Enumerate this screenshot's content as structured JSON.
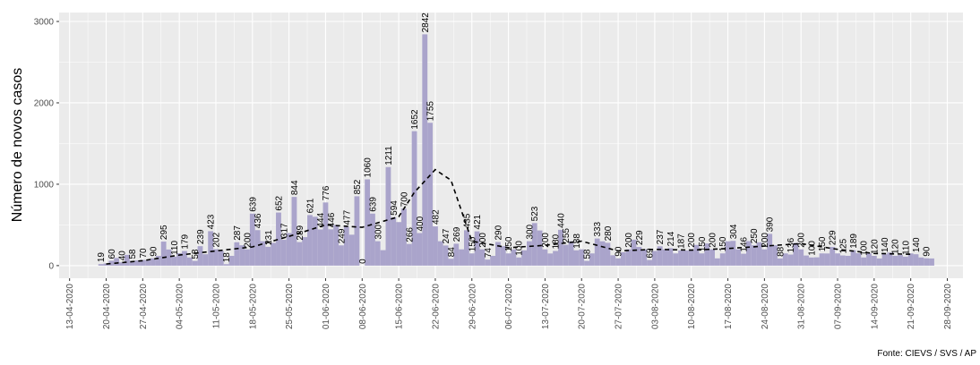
{
  "chart_data": {
    "type": "bar",
    "y_label": "Número de novos casos",
    "caption": "Fonte: CIEVS / SVS / AP",
    "grid": true,
    "xlim": [
      "2020-04-11",
      "2020-10-01"
    ],
    "ylim": [
      -155,
      3110
    ],
    "yticks": [
      0,
      1000,
      2000,
      3000
    ],
    "xticks": [
      {
        "value": "2020-04-13",
        "label": "13-04-2020"
      },
      {
        "value": "2020-04-20",
        "label": "20-04-2020"
      },
      {
        "value": "2020-04-27",
        "label": "27-04-2020"
      },
      {
        "value": "2020-05-04",
        "label": "04-05-2020"
      },
      {
        "value": "2020-05-11",
        "label": "11-05-2020"
      },
      {
        "value": "2020-05-18",
        "label": "18-05-2020"
      },
      {
        "value": "2020-05-25",
        "label": "25-05-2020"
      },
      {
        "value": "2020-06-01",
        "label": "01-06-2020"
      },
      {
        "value": "2020-06-08",
        "label": "08-06-2020"
      },
      {
        "value": "2020-06-15",
        "label": "15-06-2020"
      },
      {
        "value": "2020-06-22",
        "label": "22-06-2020"
      },
      {
        "value": "2020-06-29",
        "label": "29-06-2020"
      },
      {
        "value": "2020-07-06",
        "label": "06-07-2020"
      },
      {
        "value": "2020-07-13",
        "label": "13-07-2020"
      },
      {
        "value": "2020-07-20",
        "label": "20-07-2020"
      },
      {
        "value": "2020-07-27",
        "label": "27-07-2020"
      },
      {
        "value": "2020-08-03",
        "label": "03-08-2020"
      },
      {
        "value": "2020-08-10",
        "label": "10-08-2020"
      },
      {
        "value": "2020-08-17",
        "label": "17-08-2020"
      },
      {
        "value": "2020-08-24",
        "label": "24-08-2020"
      },
      {
        "value": "2020-08-31",
        "label": "31-08-2020"
      },
      {
        "value": "2020-09-07",
        "label": "07-09-2020"
      },
      {
        "value": "2020-09-14",
        "label": "14-09-2020"
      },
      {
        "value": "2020-09-21",
        "label": "21-09-2020"
      },
      {
        "value": "2020-09-28",
        "label": "28-09-2020"
      }
    ],
    "series": [
      {
        "type": "bar",
        "color": "#aaa4cb",
        "x": [
          "2020-04-19",
          "2020-04-20",
          "2020-04-21",
          "2020-04-22",
          "2020-04-23",
          "2020-04-24",
          "2020-04-25",
          "2020-04-26",
          "2020-04-27",
          "2020-04-28",
          "2020-04-29",
          "2020-04-30",
          "2020-05-01",
          "2020-05-02",
          "2020-05-03",
          "2020-05-04",
          "2020-05-05",
          "2020-05-06",
          "2020-05-07",
          "2020-05-08",
          "2020-05-09",
          "2020-05-10",
          "2020-05-11",
          "2020-05-12",
          "2020-05-13",
          "2020-05-14",
          "2020-05-15",
          "2020-05-16",
          "2020-05-17",
          "2020-05-18",
          "2020-05-19",
          "2020-05-20",
          "2020-05-21",
          "2020-05-22",
          "2020-05-23",
          "2020-05-24",
          "2020-05-25",
          "2020-05-26",
          "2020-05-27",
          "2020-05-28",
          "2020-05-29",
          "2020-05-30",
          "2020-05-31",
          "2020-06-01",
          "2020-06-02",
          "2020-06-03",
          "2020-06-04",
          "2020-06-05",
          "2020-06-06",
          "2020-06-07",
          "2020-06-08",
          "2020-06-09",
          "2020-06-10",
          "2020-06-11",
          "2020-06-12",
          "2020-06-13",
          "2020-06-14",
          "2020-06-15",
          "2020-06-16",
          "2020-06-17",
          "2020-06-18",
          "2020-06-19",
          "2020-06-20",
          "2020-06-21",
          "2020-06-22",
          "2020-06-23",
          "2020-06-24",
          "2020-06-25",
          "2020-06-26",
          "2020-06-27",
          "2020-06-28",
          "2020-06-29",
          "2020-06-30",
          "2020-07-01",
          "2020-07-02",
          "2020-07-03",
          "2020-07-04",
          "2020-07-05",
          "2020-07-06",
          "2020-07-07",
          "2020-07-08",
          "2020-07-09",
          "2020-07-10",
          "2020-07-11",
          "2020-07-12",
          "2020-07-13",
          "2020-07-14",
          "2020-07-15",
          "2020-07-16",
          "2020-07-17",
          "2020-07-18",
          "2020-07-19",
          "2020-07-20",
          "2020-07-21",
          "2020-07-22",
          "2020-07-23",
          "2020-07-24",
          "2020-07-25",
          "2020-07-26",
          "2020-07-27",
          "2020-07-28",
          "2020-07-29",
          "2020-07-30",
          "2020-07-31",
          "2020-08-01",
          "2020-08-02",
          "2020-08-03",
          "2020-08-04",
          "2020-08-05",
          "2020-08-06",
          "2020-08-07",
          "2020-08-08",
          "2020-08-09",
          "2020-08-10",
          "2020-08-11",
          "2020-08-12",
          "2020-08-13",
          "2020-08-14",
          "2020-08-15",
          "2020-08-16",
          "2020-08-17",
          "2020-08-18",
          "2020-08-19",
          "2020-08-20",
          "2020-08-21",
          "2020-08-22",
          "2020-08-23",
          "2020-08-24",
          "2020-08-25",
          "2020-08-26",
          "2020-08-27",
          "2020-08-28",
          "2020-08-29",
          "2020-08-30",
          "2020-08-31",
          "2020-09-01",
          "2020-09-02",
          "2020-09-03",
          "2020-09-04",
          "2020-09-05",
          "2020-09-06",
          "2020-09-07",
          "2020-09-08",
          "2020-09-09",
          "2020-09-10",
          "2020-09-11",
          "2020-09-12",
          "2020-09-13",
          "2020-09-14",
          "2020-09-15",
          "2020-09-16",
          "2020-09-17",
          "2020-09-18",
          "2020-09-19",
          "2020-09-20",
          "2020-09-21",
          "2020-09-22",
          "2020-09-23",
          "2020-09-24",
          "2020-09-25"
        ],
        "values": [
          19,
          26,
          60,
          93,
          40,
          132,
          58,
          64,
          70,
          66,
          90,
          120,
          295,
          198,
          110,
          153,
          179,
          100,
          58,
          239,
          140,
          423,
          202,
          180,
          18,
          120,
          287,
          250,
          200,
          639,
          436,
          300,
          231,
          280,
          652,
          317,
          400,
          844,
          289,
          350,
          621,
          600,
          444,
          776,
          446,
          500,
          249,
          477,
          380,
          852,
          0,
          1060,
          639,
          300,
          190,
          1211,
          594,
          535,
          700,
          266,
          1652,
          400,
          2842,
          1755,
          482,
          300,
          247,
          84,
          269,
          200,
          435,
          150,
          421,
          200,
          74,
          120,
          290,
          239,
          150,
          199,
          100,
          188,
          300,
          523,
          432,
          200,
          149,
          180,
          440,
          255,
          300,
          188,
          200,
          58,
          150,
          333,
          299,
          280,
          127,
          90,
          165,
          200,
          319,
          229,
          200,
          69,
          180,
          237,
          200,
          214,
          150,
          187,
          185,
          200,
          254,
          150,
          272,
          200,
          89,
          150,
          299,
          304,
          200,
          146,
          301,
          250,
          286,
          200,
          390,
          250,
          88,
          150,
          136,
          278,
          200,
          124,
          100,
          102,
          150,
          149,
          229,
          150,
          125,
          120,
          189,
          152,
          100,
          150,
          120,
          88,
          140,
          160,
          120,
          130,
          110,
          150,
          140,
          100,
          90,
          88
        ]
      },
      {
        "type": "line",
        "color": "#000000",
        "dash": true,
        "x": [
          "2020-04-20",
          "2020-04-27",
          "2020-05-04",
          "2020-05-11",
          "2020-05-18",
          "2020-05-25",
          "2020-06-01",
          "2020-06-08",
          "2020-06-15",
          "2020-06-18",
          "2020-06-22",
          "2020-06-25",
          "2020-06-29",
          "2020-07-06",
          "2020-07-13",
          "2020-07-20",
          "2020-07-27",
          "2020-08-03",
          "2020-08-10",
          "2020-08-17",
          "2020-08-24",
          "2020-08-31",
          "2020-09-07",
          "2020-09-14",
          "2020-09-21"
        ],
        "values": [
          20,
          60,
          130,
          180,
          230,
          360,
          500,
          470,
          600,
          900,
          1180,
          1050,
          300,
          220,
          250,
          300,
          180,
          200,
          190,
          210,
          240,
          270,
          200,
          150,
          140
        ]
      }
    ]
  }
}
